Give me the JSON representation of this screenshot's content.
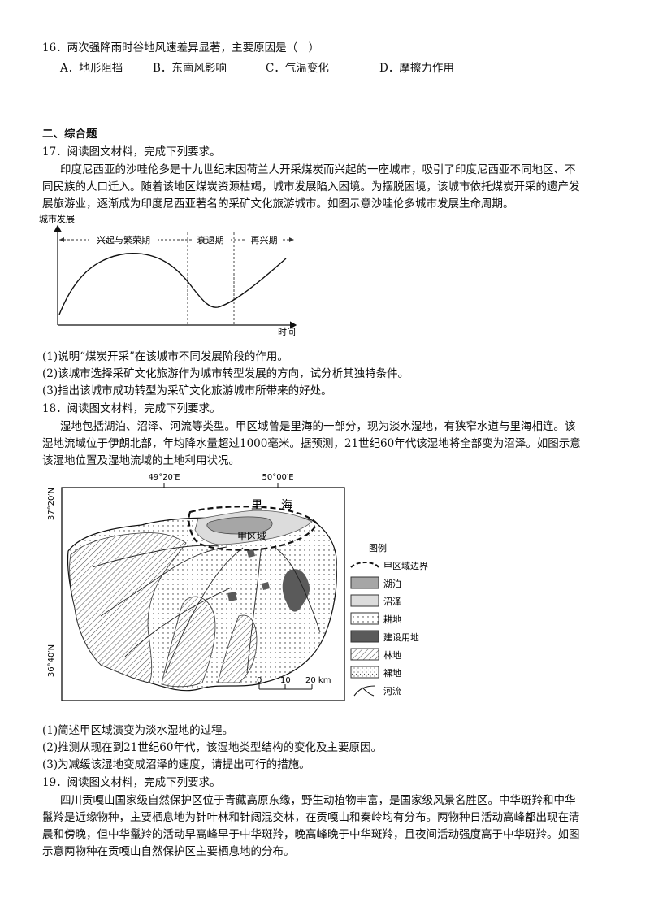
{
  "q16": {
    "stem": "16．两次强降雨时谷地风速差异显著，主要原因是（　）",
    "options": [
      "A．地形阻挡",
      "B．东南风影响",
      "C．气温变化",
      "D．摩擦力作用"
    ]
  },
  "section2": {
    "title": "二、综合题"
  },
  "q17": {
    "stem": "17．阅读图文材料，完成下列要求。",
    "para": [
      "印度尼西亚的沙哇伦多是十九世纪末因荷兰人开采煤炭而兴起的一座城市，吸引了印度尼西亚不同地区、不",
      "同民族的人口迁入。随着该地区煤炭资源枯竭，城市发展陷入困境。为摆脱困境，该城市依托煤炭开采的遗产发",
      "展旅游业，逐渐成为印度尼西亚著名的采矿文化旅游城市。如图示意沙哇伦多城市发展生命周期。"
    ],
    "questions": [
      "(1)说明“煤炭开采”在该城市不同发展阶段的作用。",
      "(2)该城市选择采矿文化旅游作为城市转型发展的方向，试分析其独特条件。",
      "(3)指出该城市成功转型为采矿文化旅游城市所带来的好处。"
    ]
  },
  "chart_data": {
    "type": "line",
    "ylabel": "城市发展",
    "xlabel": "时间",
    "phases": [
      "兴起与繁荣期",
      "衰退期",
      "再兴期"
    ],
    "curve_shape": "rise to peak during first phase, decline to trough in decline phase, rise again in revival phase"
  },
  "q18": {
    "stem": "18．阅读图文材料，完成下列要求。",
    "para": [
      "湿地包括湖泊、沼泽、河流等类型。甲区域曾是里海的一部分，现为淡水湿地，有狭窄水道与里海相连。该",
      "湿地流域位于伊朗北部，年均降水量超过1000毫米。据预测，21世纪60年代该湿地将全部变为沼泽。如图示意",
      "该湿地位置及湿地流域的土地利用状况。"
    ],
    "map": {
      "lon_labels": [
        "49°20′E",
        "50°00′E"
      ],
      "lat_labels": [
        "37°20′N",
        "36°40′N"
      ],
      "sea_label_1": "里",
      "sea_label_2": "海",
      "area_label": "甲区域",
      "scale_labels": [
        "0",
        "10",
        "20 km"
      ],
      "legend_title": "图例",
      "legend": [
        "甲区域边界",
        "湖泊",
        "沼泽",
        "耕地",
        "建设用地",
        "林地",
        "裸地",
        "河流"
      ],
      "colors": {
        "lake": "#a6a6a6",
        "marsh": "#dcdcdc",
        "built": "#5a5a5a"
      }
    },
    "questions": [
      "(1)简述甲区域演变为淡水湿地的过程。",
      "(2)推测从现在到21世纪60年代，该湿地类型结构的变化及主要原因。",
      "(3)为减缓该湿地变成沼泽的速度，请提出可行的措施。"
    ]
  },
  "q19": {
    "stem": "19．阅读图文材料，完成下列要求。",
    "para": [
      "四川贡嘎山国家级自然保护区位于青藏高原东缘，野生动植物丰富，是国家级风景名胜区。中华斑羚和中华",
      "鬣羚是近缘物种，主要栖息地为针叶林和针阔混交林，在贡嘎山和秦岭均有分布。两物种日活动高峰都出现在清",
      "晨和傍晚，但中华鬣羚的活动早高峰早于中华斑羚，晚高峰晚于中华斑羚，且夜间活动强度高于中华斑羚。如图",
      "示意两物种在贡嘎山自然保护区主要栖息地的分布。"
    ]
  }
}
